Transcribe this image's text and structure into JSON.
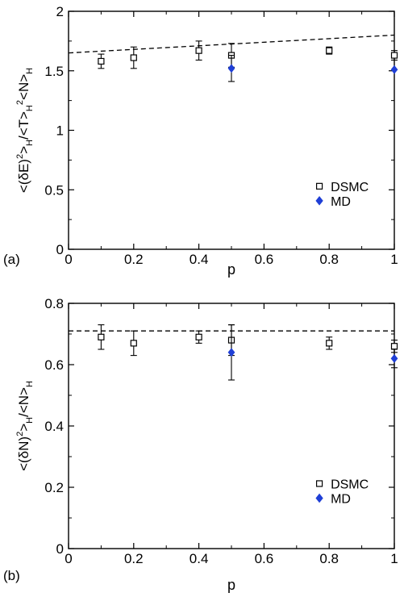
{
  "chart_data": [
    {
      "type": "scatter",
      "panel_label": "(a)",
      "xlabel": "p",
      "ylabel": "<(δE)²>_H/<T>_H²<N>_H",
      "xlim": [
        0,
        1
      ],
      "ylim": [
        0,
        2
      ],
      "xticks": [
        "0",
        "0.2",
        "0.4",
        "0.6",
        "0.8",
        "1"
      ],
      "yticks": [
        "0",
        "0.5",
        "1",
        "1.5",
        "2"
      ],
      "grid": false,
      "legend_position": "bottom-right",
      "series": [
        {
          "name": "DSMC",
          "marker": "open-square",
          "color": "#000000",
          "points": [
            {
              "x": 0.1,
              "y": 1.58,
              "err": 0.06
            },
            {
              "x": 0.2,
              "y": 1.61,
              "err": 0.09
            },
            {
              "x": 0.4,
              "y": 1.67,
              "err": 0.08
            },
            {
              "x": 0.5,
              "y": 1.63,
              "err": 0.1
            },
            {
              "x": 0.8,
              "y": 1.67,
              "err": 0.03
            },
            {
              "x": 1.0,
              "y": 1.63,
              "err": 0.04
            }
          ]
        },
        {
          "name": "MD",
          "marker": "filled-diamond",
          "color": "#1f3fd6",
          "points": [
            {
              "x": 0.5,
              "y": 1.52,
              "err": 0.11
            },
            {
              "x": 1.0,
              "y": 1.51,
              "err": 0.0
            }
          ]
        }
      ],
      "reference_line": {
        "style": "dashed",
        "x": [
          0,
          1
        ],
        "y": [
          1.65,
          1.8
        ]
      }
    },
    {
      "type": "scatter",
      "panel_label": "(b)",
      "xlabel": "p",
      "ylabel": "<(δN)²>_H/<N>_H",
      "xlim": [
        0,
        1
      ],
      "ylim": [
        0,
        0.8
      ],
      "xticks": [
        "0",
        "0.2",
        "0.4",
        "0.6",
        "0.8",
        "1"
      ],
      "yticks": [
        "0",
        "0.2",
        "0.4",
        "0.6",
        "0.8"
      ],
      "grid": false,
      "legend_position": "bottom-right",
      "series": [
        {
          "name": "DSMC",
          "marker": "open-square",
          "color": "#000000",
          "points": [
            {
              "x": 0.1,
              "y": 0.69,
              "err": 0.04
            },
            {
              "x": 0.2,
              "y": 0.67,
              "err": 0.04
            },
            {
              "x": 0.4,
              "y": 0.69,
              "err": 0.02
            },
            {
              "x": 0.5,
              "y": 0.68,
              "err": 0.05
            },
            {
              "x": 0.8,
              "y": 0.67,
              "err": 0.02
            },
            {
              "x": 1.0,
              "y": 0.66,
              "err": 0.02
            }
          ]
        },
        {
          "name": "MD",
          "marker": "filled-diamond",
          "color": "#1f3fd6",
          "points": [
            {
              "x": 0.5,
              "y": 0.64,
              "err": 0.09
            },
            {
              "x": 1.0,
              "y": 0.62,
              "err": 0.03
            }
          ]
        }
      ],
      "reference_line": {
        "style": "dashed",
        "x": [
          0,
          1
        ],
        "y": [
          0.71,
          0.71
        ]
      }
    }
  ]
}
